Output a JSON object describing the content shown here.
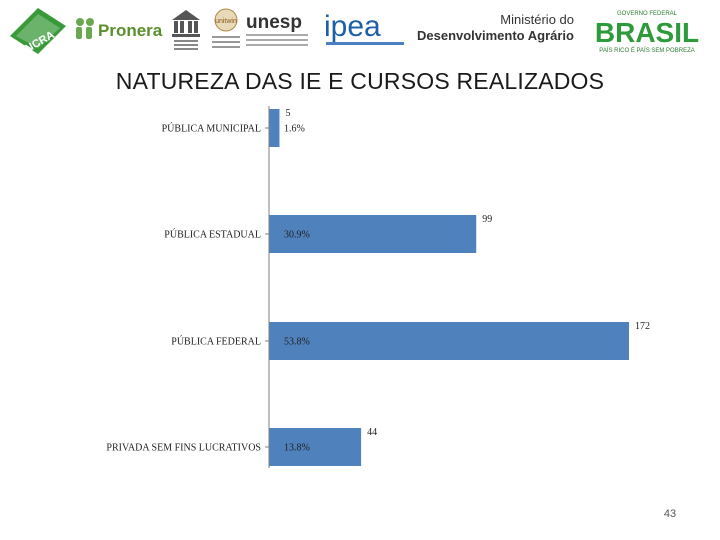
{
  "header": {
    "logos": [
      {
        "name": "incra-logo",
        "text": "INCRA"
      },
      {
        "name": "pronera-logo",
        "text": "Pronera"
      },
      {
        "name": "unesco-logo",
        "text": "UNESCO"
      },
      {
        "name": "unitwin-logo",
        "text": "unitwin"
      },
      {
        "name": "unesp-logo",
        "text": "unesp"
      },
      {
        "name": "ipea-logo",
        "text": "ipea"
      },
      {
        "name": "mda-logo",
        "text_line1": "Ministério do",
        "text_line2": "Desenvolvimento Agrário"
      },
      {
        "name": "brasil-logo",
        "text": "BRASIL",
        "tagline": "PAÍS RICO É PAÍS SEM POBREZA",
        "top": "GOVERNO FEDERAL"
      }
    ]
  },
  "title": "NATUREZA DAS IE E CURSOS REALIZADOS",
  "page_number": "43",
  "colors": {
    "bar": "#4f81bd",
    "axis": "#7f7f7f"
  },
  "chart_data": {
    "type": "bar",
    "orientation": "horizontal",
    "title": "NATUREZA DAS IE E CURSOS REALIZADOS",
    "categories": [
      "PÚBLICA MUNICIPAL",
      "PÚBLICA ESTADUAL",
      "PÚBLICA FEDERAL",
      "PRIVADA SEM FINS LUCRATIVOS"
    ],
    "values": [
      5,
      99,
      172,
      44
    ],
    "percent_labels": [
      "1.6%",
      "30.9%",
      "53.8%",
      "13.8%"
    ],
    "value_labels": [
      "5",
      "99",
      "172",
      "44"
    ],
    "xlim": [
      0,
      172
    ],
    "grid": false,
    "legend": "none"
  }
}
